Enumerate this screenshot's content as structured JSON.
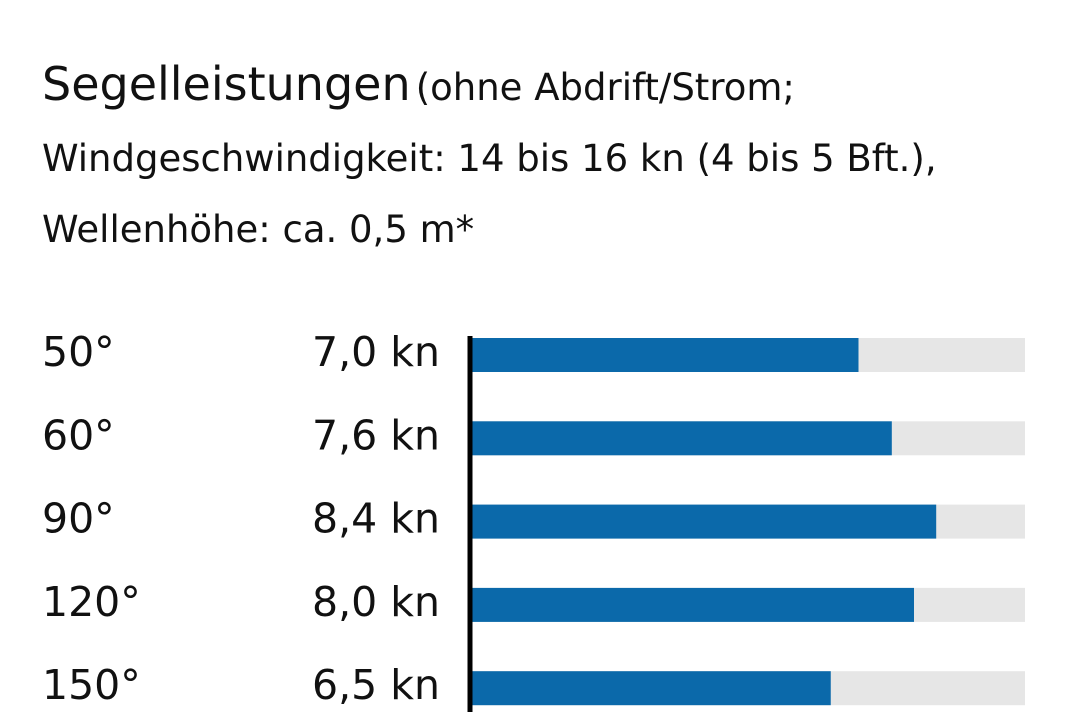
{
  "chart_data": {
    "type": "bar",
    "orientation": "horizontal",
    "title": "Segelleistungen",
    "subtitle": "(ohne Abdrift/Strom; Windgeschwindigkeit: 14 bis 16 kn (4 bis 5 Bft.), Wellenhöhe: ca. 0,5 m*",
    "categories": [
      "50°",
      "60°",
      "90°",
      "120°",
      "150°"
    ],
    "values": [
      7.0,
      7.6,
      8.4,
      8.0,
      6.5
    ],
    "value_labels": [
      "7,0 kn",
      "7,6 kn",
      "8,4 kn",
      "8,0 kn",
      "6,5 kn"
    ],
    "color": "#0b69aa",
    "track_color": "#e6e6e6",
    "xlim": [
      0,
      10
    ]
  }
}
